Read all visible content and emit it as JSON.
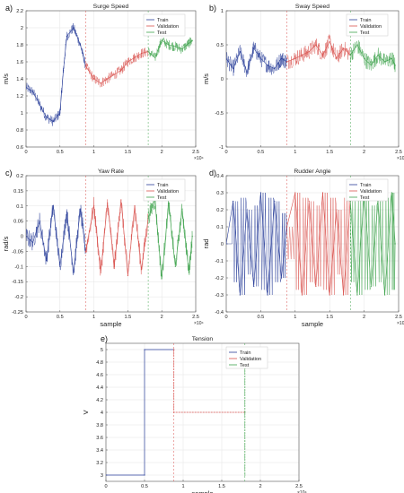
{
  "colors": {
    "train": "#2a3f9a",
    "validation": "#d9534f",
    "test": "#3fa34d",
    "axis": "#555555",
    "grid": "#e4e4e4"
  },
  "chart_data": [
    {
      "type": "line",
      "panel_label": "a)",
      "title": "Surge Speed",
      "xlabel": "",
      "ylabel": "m/s",
      "xlim": [
        0,
        2.5
      ],
      "ylim": [
        0.6,
        2.2
      ],
      "xticks": [
        "0",
        "0.5",
        "1",
        "1.5",
        "2",
        "2.5"
      ],
      "yticks": [
        "0.6",
        "0.8",
        "1",
        "1.2",
        "1.4",
        "1.6",
        "1.8",
        "2",
        "2.2"
      ],
      "x_exponent": "×10⁴",
      "grid": true,
      "legend": "top-right",
      "series": [
        {
          "name": "Train",
          "x": [
            0,
            0.1,
            0.2,
            0.3,
            0.4,
            0.5,
            0.55,
            0.6,
            0.7,
            0.8,
            0.88
          ],
          "y": [
            1.3,
            1.25,
            1.1,
            0.95,
            0.9,
            1.0,
            1.5,
            1.9,
            2.0,
            1.8,
            1.55
          ]
        },
        {
          "name": "Validation",
          "x": [
            0.88,
            1.0,
            1.1,
            1.2,
            1.3,
            1.4,
            1.5,
            1.6,
            1.7,
            1.8
          ],
          "y": [
            1.55,
            1.4,
            1.35,
            1.4,
            1.45,
            1.5,
            1.6,
            1.65,
            1.7,
            1.72
          ]
        },
        {
          "name": "Test",
          "x": [
            1.8,
            1.9,
            2.0,
            2.1,
            2.2,
            2.3,
            2.4,
            2.45
          ],
          "y": [
            1.72,
            1.65,
            1.85,
            1.8,
            1.78,
            1.75,
            1.82,
            1.85
          ]
        }
      ]
    },
    {
      "type": "line",
      "panel_label": "b)",
      "title": "Sway Speed",
      "xlabel": "",
      "ylabel": "m/s",
      "xlim": [
        0,
        2.5
      ],
      "ylim": [
        -1,
        1
      ],
      "xticks": [
        "0",
        "0.5",
        "1",
        "1.5",
        "2",
        "2.5"
      ],
      "yticks": [
        "-1",
        "-0.5",
        "0",
        "0.5",
        "1"
      ],
      "x_exponent": "×10⁴",
      "grid": true,
      "legend": "top-right",
      "series": [
        {
          "name": "Train",
          "x": [
            0,
            0.1,
            0.2,
            0.3,
            0.4,
            0.5,
            0.6,
            0.7,
            0.8,
            0.88
          ],
          "y": [
            0.3,
            0.15,
            0.4,
            0.1,
            0.45,
            0.3,
            0.2,
            0.15,
            0.3,
            0.25
          ]
        },
        {
          "name": "Validation",
          "x": [
            0.88,
            1.0,
            1.1,
            1.2,
            1.3,
            1.4,
            1.5,
            1.6,
            1.7,
            1.8
          ],
          "y": [
            0.25,
            0.3,
            0.35,
            0.4,
            0.5,
            0.35,
            0.55,
            0.3,
            0.45,
            0.35
          ]
        },
        {
          "name": "Test",
          "x": [
            1.8,
            1.9,
            2.0,
            2.1,
            2.2,
            2.3,
            2.4,
            2.45
          ],
          "y": [
            0.35,
            0.5,
            0.3,
            0.2,
            0.35,
            0.25,
            0.3,
            0.2
          ]
        }
      ]
    },
    {
      "type": "line",
      "panel_label": "c)",
      "title": "Yaw Rate",
      "xlabel": "sample",
      "ylabel": "rad/s",
      "xlim": [
        0,
        2.5
      ],
      "ylim": [
        -0.25,
        0.2
      ],
      "xticks": [
        "0",
        "0.5",
        "1",
        "1.5",
        "2",
        "2.5"
      ],
      "yticks": [
        "-0.25",
        "-0.2",
        "-0.15",
        "-0.1",
        "-0.05",
        "0",
        "0.05",
        "0.1",
        "0.15",
        "0.2"
      ],
      "x_exponent": "×10⁴",
      "grid": true,
      "legend": "top-right",
      "series": [
        {
          "name": "Train",
          "x": [
            0,
            0.1,
            0.2,
            0.3,
            0.4,
            0.5,
            0.6,
            0.7,
            0.8,
            0.88
          ],
          "y": [
            0.0,
            -0.02,
            0.05,
            -0.08,
            0.1,
            -0.1,
            0.08,
            -0.12,
            0.09,
            -0.05
          ]
        },
        {
          "name": "Validation",
          "x": [
            0.88,
            1.0,
            1.1,
            1.2,
            1.3,
            1.4,
            1.5,
            1.6,
            1.7,
            1.8
          ],
          "y": [
            -0.05,
            0.1,
            -0.12,
            0.11,
            -0.1,
            0.12,
            -0.13,
            0.1,
            -0.11,
            0.06
          ]
        },
        {
          "name": "Test",
          "x": [
            1.8,
            1.9,
            2.0,
            2.1,
            2.2,
            2.3,
            2.4,
            2.45
          ],
          "y": [
            0.06,
            0.12,
            -0.14,
            0.11,
            -0.1,
            0.09,
            -0.12,
            0.0
          ]
        }
      ]
    },
    {
      "type": "line",
      "panel_label": "d)",
      "title": "Rudder Angle",
      "xlabel": "sample",
      "ylabel": "rad",
      "xlim": [
        0,
        2.5
      ],
      "ylim": [
        -0.4,
        0.4
      ],
      "xticks": [
        "0",
        "0.5",
        "1",
        "1.5",
        "2",
        "2.5"
      ],
      "yticks": [
        "-0.4",
        "-0.3",
        "-0.2",
        "-0.1",
        "0",
        "0.1",
        "0.2",
        "0.3",
        "0.4"
      ],
      "x_exponent": "×10⁴",
      "grid": true,
      "legend": "top-right",
      "series": [
        {
          "name": "Train",
          "x": [
            0,
            0.1,
            0.2,
            0.3,
            0.4,
            0.5,
            0.6,
            0.7,
            0.8,
            0.88
          ],
          "y": [
            0,
            0.25,
            -0.3,
            0.2,
            -0.25,
            0.3,
            -0.3,
            0.25,
            -0.2,
            0.1
          ]
        },
        {
          "name": "Validation",
          "x": [
            0.88,
            1.0,
            1.1,
            1.2,
            1.3,
            1.4,
            1.5,
            1.6,
            1.7,
            1.8
          ],
          "y": [
            0.1,
            0.3,
            -0.3,
            0.25,
            -0.25,
            0.3,
            -0.3,
            0.2,
            -0.3,
            0.25
          ]
        },
        {
          "name": "Test",
          "x": [
            1.8,
            1.9,
            2.0,
            2.1,
            2.2,
            2.3,
            2.4,
            2.45
          ],
          "y": [
            0.25,
            -0.3,
            0.3,
            -0.25,
            0.25,
            -0.3,
            0.3,
            0
          ]
        }
      ]
    },
    {
      "type": "line",
      "panel_label": "e)",
      "title": "Tension",
      "xlabel": "sample",
      "ylabel": "V",
      "xlim": [
        0,
        2.5
      ],
      "ylim": [
        2.9,
        5.1
      ],
      "xticks": [
        "0",
        "0.5",
        "1",
        "1.5",
        "2",
        "2.5"
      ],
      "yticks": [
        "3",
        "3.2",
        "3.4",
        "3.6",
        "3.8",
        "4",
        "4.2",
        "4.4",
        "4.6",
        "4.8",
        "5"
      ],
      "x_exponent": "×10⁴",
      "grid": true,
      "legend": "top-right",
      "series": [
        {
          "name": "Train",
          "x": [
            0,
            0.5,
            0.5,
            0.88
          ],
          "y": [
            3.0,
            3.0,
            5.0,
            5.0
          ]
        },
        {
          "name": "Validation",
          "x": [
            0.88,
            0.88,
            1.8
          ],
          "y": [
            5.0,
            4.0,
            4.0
          ]
        },
        {
          "name": "Test",
          "x": [
            1.8,
            1.8,
            1.8
          ],
          "y": [
            4.0,
            5.0,
            3.0
          ]
        }
      ]
    }
  ]
}
